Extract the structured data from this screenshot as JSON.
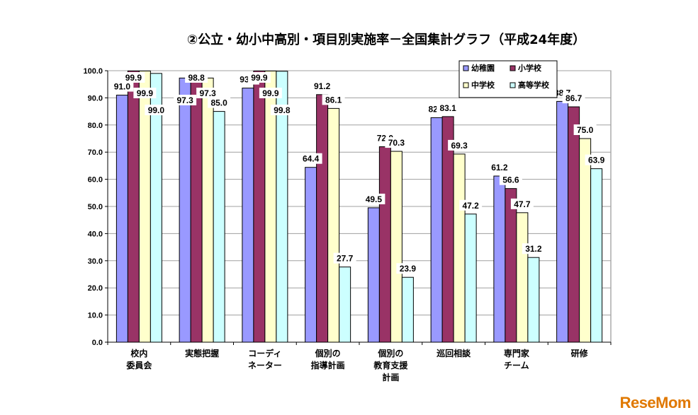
{
  "chart_data": {
    "type": "bar",
    "title": "②公立・幼小中高別・項目別実施率－全国集計グラフ（平成24年度）",
    "categories": [
      [
        "校内",
        "委員会"
      ],
      [
        "実態把握"
      ],
      [
        "コーディ",
        "ネーター"
      ],
      [
        "個別の",
        "指導計画"
      ],
      [
        "個別の",
        "教育支援",
        "計画"
      ],
      [
        "巡回相談"
      ],
      [
        "専門家",
        "チーム"
      ],
      [
        "研修"
      ]
    ],
    "series": [
      {
        "name": "幼稚園",
        "color": "#9999ff",
        "values": [
          91.0,
          97.3,
          93.6,
          64.4,
          49.5,
          82.7,
          61.2,
          88.7
        ]
      },
      {
        "name": "小学校",
        "color": "#993366",
        "values": [
          99.9,
          98.8,
          99.9,
          91.2,
          72.0,
          83.1,
          56.6,
          86.7
        ]
      },
      {
        "name": "中学校",
        "color": "#ffffcc",
        "values": [
          99.9,
          97.3,
          99.9,
          86.1,
          70.3,
          69.3,
          47.7,
          75.0
        ]
      },
      {
        "name": "高等学校",
        "color": "#ccffff",
        "values": [
          99.0,
          85.0,
          99.8,
          27.7,
          23.9,
          47.2,
          31.2,
          63.9
        ]
      }
    ],
    "yticks": [
      "0.0",
      "10.0",
      "20.0",
      "30.0",
      "40.0",
      "50.0",
      "60.0",
      "70.0",
      "80.0",
      "90.0",
      "100.0"
    ],
    "ylim": [
      0,
      100
    ],
    "grid": true,
    "legend": "top-right"
  },
  "watermark": "ReseMom"
}
